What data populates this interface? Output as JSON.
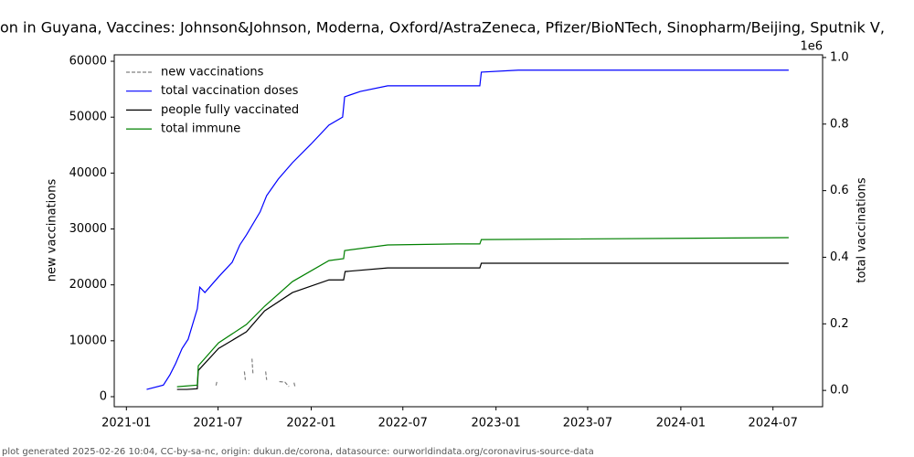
{
  "chart_data": {
    "type": "line",
    "title": "on in Guyana, Vaccines: Johnson&Johnson, Moderna, Oxford/AstraZeneca, Pfizer/BioNTech, Sinopharm/Beijing, Sputnik V,",
    "ylabel": "new vaccinations",
    "y2label": "total vaccinations",
    "y2_offset_label": "1e6",
    "footer": "plot generated 2025-02-26 10:04, CC-by-sa-nc, origin: dukun.de/corona, datasource: ourworldindata.org/coronavirus-source-data",
    "xlim": [
      "2020-12-08",
      "2024-10-07"
    ],
    "xticks": [
      "2021-01",
      "2021-07",
      "2022-01",
      "2022-07",
      "2023-01",
      "2023-07",
      "2024-01",
      "2024-07"
    ],
    "ylim": [
      -1800,
      61150
    ],
    "yticks": [
      0,
      10000,
      20000,
      30000,
      40000,
      50000,
      60000
    ],
    "y2lim": [
      -0.049,
      1.008
    ],
    "y2ticks": [
      {
        "value": 0,
        "label": "0.0"
      },
      {
        "value": 0.2,
        "label": "0.2"
      },
      {
        "value": 0.4,
        "label": "0.4"
      },
      {
        "value": 0.6,
        "label": "0.6"
      },
      {
        "value": 0.8,
        "label": "0.8"
      },
      {
        "value": 1,
        "label": "1.0"
      }
    ],
    "legend": "upper left",
    "series": [
      {
        "name": "new vaccinations",
        "color": "#808080",
        "linestyle": "dashed",
        "x": [
          "2021-06-27",
          "2021-06-29",
          "2021-07-30",
          "2021-08-22",
          "2021-08-24",
          "2021-08-30",
          "2021-09-06",
          "2021-09-08",
          "2021-09-20",
          "2021-10-03",
          "2021-10-05",
          "2021-10-18",
          "2021-10-30",
          "2021-11-10",
          "2021-11-18",
          "2021-11-23",
          "2021-11-28",
          "2021-11-30"
        ],
        "values": [
          2000,
          2800,
          null,
          4500,
          3000,
          null,
          6800,
          4000,
          null,
          4500,
          3000,
          null,
          2700,
          2600,
          1800,
          null,
          2500,
          1800
        ]
      },
      {
        "name": "total vaccination doses",
        "color": "#0000ff",
        "axis": "y2",
        "x": [
          "2021-02-10",
          "2021-03-15",
          "2021-03-28",
          "2021-04-08",
          "2021-04-21",
          "2021-05-03",
          "2021-05-21",
          "2021-05-26",
          "2021-06-05",
          "2021-07-02",
          "2021-07-29",
          "2021-08-13",
          "2021-08-26",
          "2021-09-22",
          "2021-10-05",
          "2021-10-28",
          "2021-11-25",
          "2021-12-31",
          "2022-02-05",
          "2022-03-04",
          "2022-03-08",
          "2022-04-08",
          "2022-06-01",
          "2022-11-30",
          "2022-12-03",
          "2023-02-14",
          "2024-08-01"
        ],
        "values": [
          0.003,
          0.016,
          0.047,
          0.08,
          0.126,
          0.154,
          0.245,
          0.31,
          0.294,
          0.341,
          0.385,
          0.437,
          0.467,
          0.536,
          0.585,
          0.635,
          0.684,
          0.739,
          0.797,
          0.821,
          0.882,
          0.898,
          0.915,
          0.915,
          0.956,
          0.962,
          0.962
        ]
      },
      {
        "name": "people fully vaccinated",
        "color": "#000000",
        "axis": "y2",
        "x": [
          "2021-04-11",
          "2021-04-30",
          "2021-05-21",
          "2021-05-23",
          "2021-07-02",
          "2021-08-26",
          "2021-10-01",
          "2021-11-25",
          "2022-02-05",
          "2022-03-06",
          "2022-03-09",
          "2022-06-01",
          "2022-11-30",
          "2022-12-03",
          "2024-08-01"
        ],
        "values": [
          0.003,
          0.003,
          0.005,
          0.06,
          0.126,
          0.176,
          0.239,
          0.294,
          0.332,
          0.332,
          0.357,
          0.368,
          0.368,
          0.382,
          0.382
        ]
      },
      {
        "name": "total immune",
        "color": "#008000",
        "axis": "y2",
        "x": [
          "2021-04-11",
          "2021-05-21",
          "2021-05-23",
          "2021-07-02",
          "2021-08-26",
          "2021-10-01",
          "2021-11-25",
          "2022-02-05",
          "2022-03-06",
          "2022-03-08",
          "2022-06-01",
          "2022-10-15",
          "2022-11-30",
          "2022-12-03",
          "2024-08-01"
        ],
        "values": [
          0.011,
          0.016,
          0.074,
          0.143,
          0.198,
          0.253,
          0.327,
          0.39,
          0.396,
          0.42,
          0.437,
          0.44,
          0.44,
          0.453,
          0.459
        ]
      }
    ]
  }
}
